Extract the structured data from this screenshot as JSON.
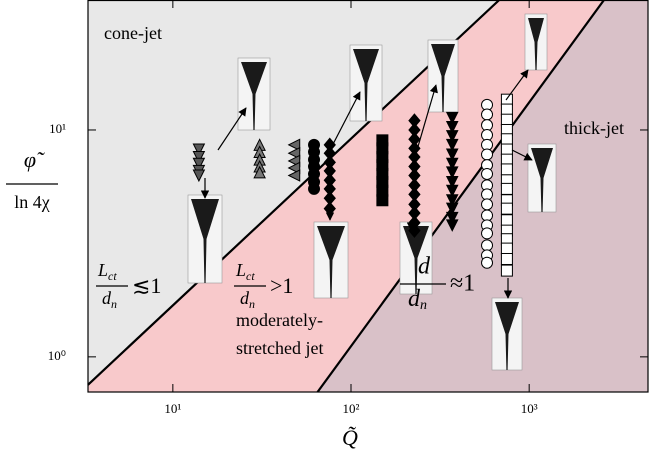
{
  "chart_data": {
    "type": "scatter",
    "xlabel": "Q̃",
    "ylabel": {
      "numerator": "φ̃",
      "denominator": "ln 4χ"
    },
    "xscale": "log",
    "yscale": "log",
    "xlim": [
      3.34,
      4645
    ],
    "ylim": [
      0.7,
      37.4
    ],
    "xticks": [
      {
        "value": 10,
        "label": "10¹"
      },
      {
        "value": 100,
        "label": "10²"
      },
      {
        "value": 1000,
        "label": "10³"
      }
    ],
    "yticks": [
      {
        "value": 1,
        "label": "10⁰"
      },
      {
        "value": 10,
        "label": "10¹"
      }
    ],
    "regions": [
      {
        "color": "#e8e8e8"
      },
      {
        "color": "#f8c9cb"
      },
      {
        "color": "#d9c1c8"
      }
    ],
    "boundaries": [
      {
        "x": [
          3.34,
          679
        ],
        "y": [
          0.753,
          37.4
        ],
        "color": "#000000"
      },
      {
        "x": [
          64.9,
          2630
        ],
        "y": [
          0.7,
          37.4
        ],
        "color": "#000000"
      }
    ],
    "annotations": {
      "cone_jet": "cone-jet",
      "thick_jet": "thick-jet",
      "moderately": [
        "moderately-",
        "stretched jet"
      ],
      "ratio1": {
        "num": "L",
        "num_sub": "ct",
        "den": "d",
        "den_sub": "n",
        "rel": "≲1"
      },
      "ratio2": {
        "num": "L",
        "num_sub": "ct",
        "den": "d",
        "den_sub": "n",
        "rel": ">1"
      },
      "ratio3": {
        "num": "d",
        "den": "d",
        "den_sub": "n",
        "rel": "≈1"
      }
    },
    "series": [
      {
        "marker": "triangle-down",
        "color": "#000000",
        "fill": "#555555",
        "x": [
          14,
          14,
          14,
          14,
          14
        ],
        "values": [
          8.2,
          7.6,
          7.1,
          6.6,
          6.3
        ]
      },
      {
        "marker": "triangle-up",
        "color": "#000000",
        "fill": "#777777",
        "x": [
          30.7,
          30.7,
          30.7,
          30.7,
          30.7
        ],
        "values": [
          8.6,
          8.0,
          7.4,
          6.9,
          6.5
        ]
      },
      {
        "marker": "triangle-left",
        "color": "#000000",
        "fill": "#666666",
        "x": [
          48,
          48,
          48,
          48,
          48
        ],
        "values": [
          8.6,
          7.9,
          7.3,
          6.8,
          6.3
        ]
      },
      {
        "marker": "circle",
        "color": "#000000",
        "fill": "#000000",
        "x": [
          62,
          62,
          62,
          62,
          62,
          62,
          62
        ],
        "values": [
          8.6,
          8.0,
          7.4,
          6.9,
          6.4,
          5.9,
          5.5
        ]
      },
      {
        "marker": "diamond",
        "color": "#000000",
        "fill": "#000000",
        "x": [
          76,
          76,
          76,
          76,
          76,
          76,
          76,
          76
        ],
        "values": [
          8.6,
          7.9,
          7.2,
          6.6,
          6.0,
          5.5,
          5.0,
          4.5
        ]
      },
      {
        "marker": "square",
        "color": "#000000",
        "fill": "#000000",
        "x": [
          150,
          150,
          150,
          150,
          150,
          150,
          150,
          150
        ],
        "values": [
          9.0,
          8.3,
          7.6,
          7.0,
          6.4,
          5.9,
          5.4,
          4.9
        ]
      },
      {
        "marker": "diamond",
        "color": "#000000",
        "fill": "#000000",
        "x": [
          227,
          227,
          227,
          227,
          227,
          227,
          227,
          227,
          227,
          227,
          227,
          227,
          227
        ],
        "values": [
          11.0,
          10.0,
          9.1,
          8.3,
          7.6,
          6.9,
          6.3,
          5.7,
          5.2,
          4.7,
          4.3,
          3.9,
          3.6
        ]
      },
      {
        "marker": "triangle-down",
        "color": "#000000",
        "fill": "#000000",
        "x": [
          370,
          370,
          370,
          370,
          370,
          370,
          370,
          370,
          370,
          370,
          370,
          370,
          370
        ],
        "values": [
          11.3,
          10.3,
          9.4,
          8.6,
          7.8,
          7.1,
          6.5,
          5.9,
          5.4,
          4.9,
          4.5,
          4.1,
          3.8
        ]
      },
      {
        "marker": "circle",
        "color": "#000000",
        "fill": "#ffffff",
        "x": [
          580,
          580,
          580,
          580,
          580,
          580,
          580,
          580,
          580,
          580,
          580,
          580,
          580,
          580,
          580,
          580,
          580
        ],
        "values": [
          12.9,
          11.7,
          10.5,
          9.5,
          8.6,
          7.8,
          7.0,
          6.4,
          5.7,
          5.2,
          4.7,
          4.2,
          3.8,
          3.5,
          3.1,
          2.8,
          2.6
        ]
      },
      {
        "marker": "square",
        "color": "#000000",
        "fill": "#ffffff",
        "x": [
          750,
          750,
          750,
          750,
          750,
          750,
          750,
          750,
          750,
          750,
          750,
          750,
          750,
          750,
          750,
          750,
          750,
          750
        ],
        "values": [
          13.6,
          12.3,
          11.1,
          10.0,
          9.1,
          8.2,
          7.4,
          6.7,
          6.0,
          5.5,
          4.9,
          4.5,
          4.0,
          3.6,
          3.3,
          3.0,
          2.7,
          2.4
        ]
      }
    ]
  }
}
